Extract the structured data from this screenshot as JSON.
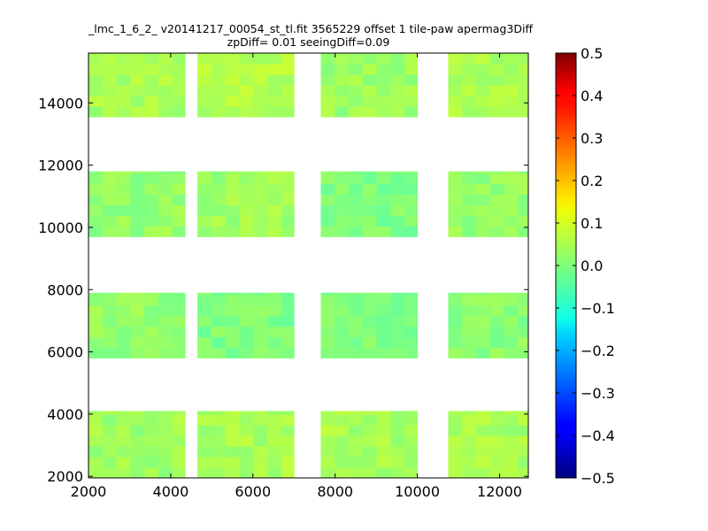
{
  "chart_data": {
    "type": "heatmap",
    "title": "_lmc_1_6_2_ v20141217_00054_st_tl.fit 3565229 offset 1 tile-paw apermag3Diff",
    "subtitle": "zpDiff= 0.01 seeingDiff=0.09",
    "xlabel": "",
    "ylabel": "",
    "xlim": [
      2000,
      12700
    ],
    "ylim": [
      1950,
      15600
    ],
    "x_ticks": [
      "2000",
      "4000",
      "6000",
      "8000",
      "10000",
      "12000"
    ],
    "x_tick_values": [
      2000,
      4000,
      6000,
      8000,
      10000,
      12000
    ],
    "y_ticks": [
      "2000",
      "4000",
      "6000",
      "8000",
      "10000",
      "12000",
      "14000"
    ],
    "y_tick_values": [
      2000,
      4000,
      6000,
      8000,
      10000,
      12000,
      14000
    ],
    "colorbar": {
      "range": [
        -0.5,
        0.5
      ],
      "ticks": [
        "0.5",
        "0.4",
        "0.3",
        "0.2",
        "0.1",
        "0.0",
        "−0.1",
        "−0.2",
        "−0.3",
        "−0.4",
        "−0.5"
      ],
      "tick_values": [
        0.5,
        0.4,
        0.3,
        0.2,
        0.1,
        0.0,
        -0.1,
        -0.2,
        -0.3,
        -0.4,
        -0.5
      ],
      "colormap": "jet"
    },
    "grid": false,
    "cell_size": [
      340,
      340
    ],
    "block_columns_x": [
      [
        2000,
        4350
      ],
      [
        4650,
        7000
      ],
      [
        7650,
        10000
      ],
      [
        10750,
        12700
      ]
    ],
    "block_rows_y": [
      [
        13550,
        15600
      ],
      [
        9700,
        11800
      ],
      [
        5800,
        7900
      ],
      [
        1950,
        4100
      ]
    ],
    "block_mean_values": [
      [
        0.04,
        0.05,
        0.03,
        0.04
      ],
      [
        0.02,
        0.03,
        0.0,
        0.02
      ],
      [
        0.02,
        0.0,
        0.0,
        0.01
      ],
      [
        0.03,
        0.04,
        0.04,
        0.04
      ]
    ]
  }
}
